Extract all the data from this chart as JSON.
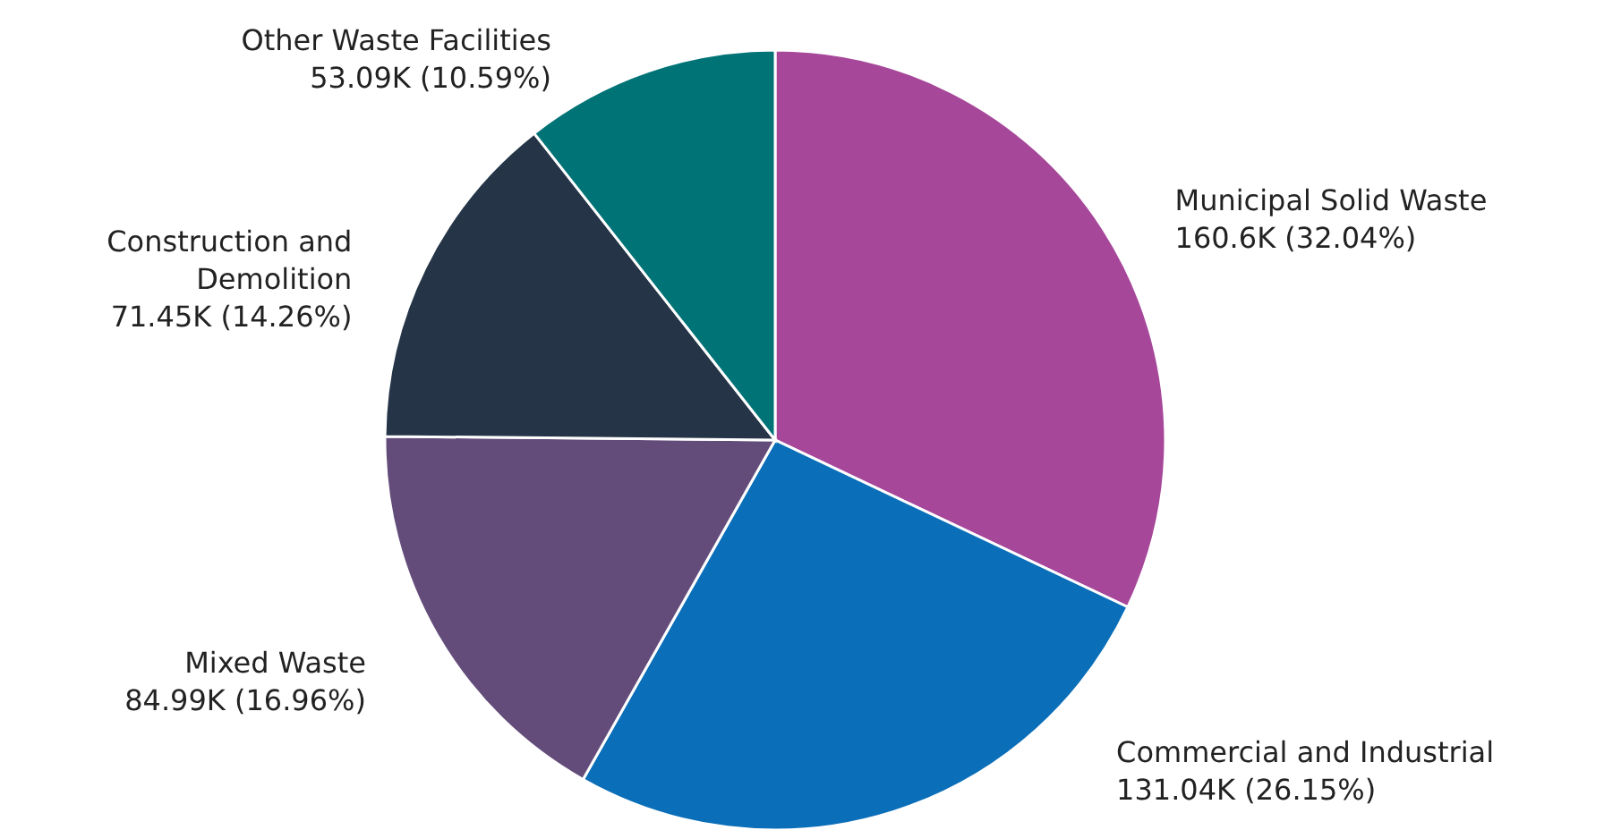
{
  "chart_data": {
    "type": "pie",
    "categories": [
      "Municipal Solid Waste",
      "Commercial and Industrial",
      "Mixed Waste",
      "Construction and Demolition",
      "Other Waste Facilities"
    ],
    "values": [
      160600,
      131040,
      84990,
      71450,
      53090
    ],
    "value_labels": [
      "160.6K (32.04%)",
      "131.04K (26.15%)",
      "84.99K (16.96%)",
      "71.45K (14.26%)",
      "53.09K (10.59%)"
    ],
    "colors": [
      "#a6479a",
      "#0a6eb8",
      "#634c7a",
      "#253547",
      "#007377"
    ]
  }
}
